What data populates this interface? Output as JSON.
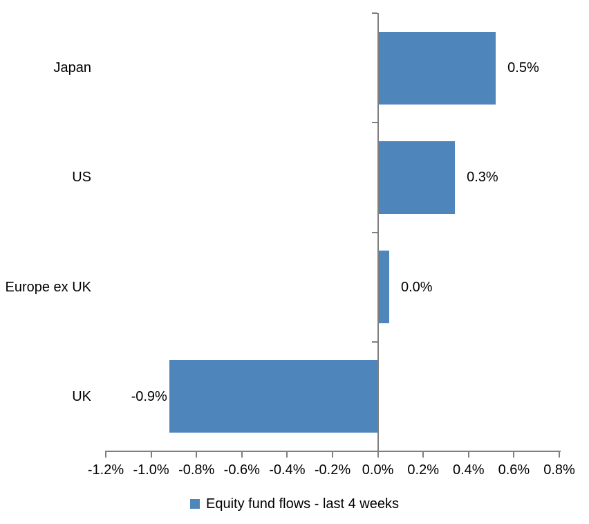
{
  "chart_data": {
    "type": "bar",
    "orientation": "horizontal",
    "title": "",
    "categories": [
      "Japan",
      "US",
      "Europe ex UK",
      "UK"
    ],
    "series": [
      {
        "name": "Equity fund flows - last 4 weeks",
        "values": [
          0.52,
          0.34,
          0.05,
          -0.92
        ],
        "data_labels": [
          "0.5%",
          "0.3%",
          "0.0%",
          "-0.9%"
        ]
      }
    ],
    "xlim": [
      -1.2,
      0.8
    ],
    "x_tick_values": [
      -1.2,
      -1.0,
      -0.8,
      -0.6,
      -0.4,
      -0.2,
      0.0,
      0.2,
      0.4,
      0.6,
      0.8
    ],
    "x_tick_labels": [
      "-1.2%",
      "-1.0%",
      "-0.8%",
      "-0.6%",
      "-0.4%",
      "-0.2%",
      "0.0%",
      "0.2%",
      "0.4%",
      "0.6%",
      "0.8%"
    ],
    "grid": false,
    "legend_position": "bottom",
    "legend": "Equity fund flows - last 4 weeks",
    "colors": {
      "bar": "#4E86BC",
      "axis": "#7F7F7F",
      "text": "#000000",
      "background": "#FFFFFF"
    }
  }
}
